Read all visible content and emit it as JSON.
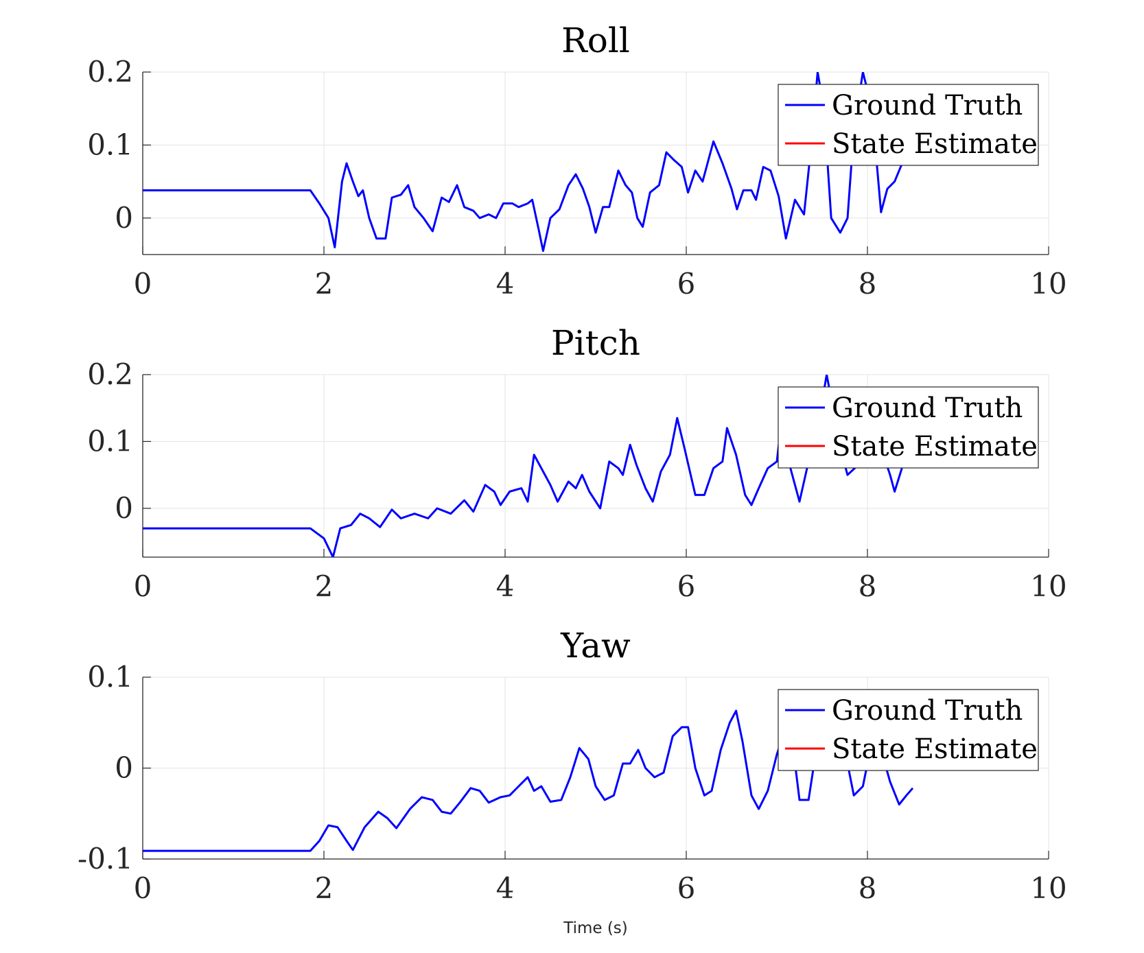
{
  "xlabel": "Time (s)",
  "chart_data": [
    {
      "type": "line",
      "title": "Roll",
      "xlim": [
        0,
        10
      ],
      "ylim": [
        -0.05,
        0.2
      ],
      "xticks": [
        "0",
        "2",
        "4",
        "6",
        "8",
        "10"
      ],
      "yticks": [
        "0.2",
        "0.1",
        "0"
      ],
      "grid": true,
      "legend_position": "top-right",
      "series": [
        {
          "name": "Ground Truth",
          "color": "#0000ff",
          "points": [
            [
              0,
              0.038
            ],
            [
              1.85,
              0.038
            ],
            [
              1.95,
              0.02
            ],
            [
              2.05,
              0.0
            ],
            [
              2.12,
              -0.04
            ],
            [
              2.2,
              0.05
            ],
            [
              2.25,
              0.075
            ],
            [
              2.32,
              0.05
            ],
            [
              2.38,
              0.03
            ],
            [
              2.43,
              0.038
            ],
            [
              2.5,
              0.0
            ],
            [
              2.58,
              -0.028
            ],
            [
              2.68,
              -0.028
            ],
            [
              2.75,
              0.028
            ],
            [
              2.85,
              0.032
            ],
            [
              2.93,
              0.045
            ],
            [
              3.0,
              0.015
            ],
            [
              3.1,
              0.0
            ],
            [
              3.2,
              -0.018
            ],
            [
              3.3,
              0.028
            ],
            [
              3.38,
              0.022
            ],
            [
              3.47,
              0.045
            ],
            [
              3.55,
              0.015
            ],
            [
              3.65,
              0.01
            ],
            [
              3.72,
              0.0
            ],
            [
              3.82,
              0.005
            ],
            [
              3.9,
              0.0
            ],
            [
              3.98,
              0.02
            ],
            [
              4.08,
              0.02
            ],
            [
              4.15,
              0.015
            ],
            [
              4.25,
              0.02
            ],
            [
              4.3,
              0.025
            ],
            [
              4.37,
              -0.015
            ],
            [
              4.42,
              -0.045
            ],
            [
              4.5,
              0.0
            ],
            [
              4.6,
              0.012
            ],
            [
              4.7,
              0.045
            ],
            [
              4.78,
              0.06
            ],
            [
              4.86,
              0.04
            ],
            [
              4.93,
              0.015
            ],
            [
              5.0,
              -0.02
            ],
            [
              5.08,
              0.015
            ],
            [
              5.15,
              0.015
            ],
            [
              5.25,
              0.065
            ],
            [
              5.33,
              0.045
            ],
            [
              5.4,
              0.035
            ],
            [
              5.46,
              0.0
            ],
            [
              5.52,
              -0.012
            ],
            [
              5.6,
              0.035
            ],
            [
              5.7,
              0.045
            ],
            [
              5.78,
              0.09
            ],
            [
              5.86,
              0.08
            ],
            [
              5.95,
              0.07
            ],
            [
              6.02,
              0.035
            ],
            [
              6.1,
              0.065
            ],
            [
              6.18,
              0.05
            ],
            [
              6.3,
              0.105
            ],
            [
              6.4,
              0.075
            ],
            [
              6.5,
              0.04
            ],
            [
              6.56,
              0.012
            ],
            [
              6.63,
              0.038
            ],
            [
              6.72,
              0.038
            ],
            [
              6.77,
              0.025
            ],
            [
              6.85,
              0.07
            ],
            [
              6.93,
              0.065
            ],
            [
              7.02,
              0.03
            ],
            [
              7.1,
              -0.028
            ],
            [
              7.2,
              0.025
            ],
            [
              7.3,
              0.005
            ],
            [
              7.38,
              0.1
            ],
            [
              7.45,
              0.2
            ],
            [
              7.52,
              0.15
            ],
            [
              7.6,
              0.0
            ],
            [
              7.7,
              -0.02
            ],
            [
              7.78,
              0.0
            ],
            [
              7.85,
              0.12
            ],
            [
              7.95,
              0.2
            ],
            [
              8.05,
              0.15
            ],
            [
              8.15,
              0.008
            ],
            [
              8.22,
              0.04
            ],
            [
              8.3,
              0.05
            ],
            [
              8.4,
              0.08
            ]
          ]
        },
        {
          "name": "State Estimate",
          "color": "#ff0000",
          "points": []
        }
      ]
    },
    {
      "type": "line",
      "title": "Pitch",
      "xlim": [
        0,
        10
      ],
      "ylim": [
        -0.073,
        0.2
      ],
      "xticks": [
        "0",
        "2",
        "4",
        "6",
        "8",
        "10"
      ],
      "yticks": [
        "0.2",
        "0.1",
        "0"
      ],
      "grid": true,
      "legend_position": "top-right",
      "series": [
        {
          "name": "Ground Truth",
          "color": "#0000ff",
          "points": [
            [
              0,
              -0.03
            ],
            [
              1.85,
              -0.03
            ],
            [
              2.0,
              -0.045
            ],
            [
              2.1,
              -0.073
            ],
            [
              2.18,
              -0.03
            ],
            [
              2.3,
              -0.025
            ],
            [
              2.4,
              -0.008
            ],
            [
              2.5,
              -0.015
            ],
            [
              2.62,
              -0.028
            ],
            [
              2.75,
              -0.002
            ],
            [
              2.85,
              -0.015
            ],
            [
              3.0,
              -0.008
            ],
            [
              3.15,
              -0.015
            ],
            [
              3.25,
              0.0
            ],
            [
              3.4,
              -0.008
            ],
            [
              3.55,
              0.012
            ],
            [
              3.65,
              -0.005
            ],
            [
              3.78,
              0.035
            ],
            [
              3.88,
              0.025
            ],
            [
              3.95,
              0.005
            ],
            [
              4.05,
              0.025
            ],
            [
              4.18,
              0.03
            ],
            [
              4.25,
              0.01
            ],
            [
              4.32,
              0.08
            ],
            [
              4.4,
              0.06
            ],
            [
              4.5,
              0.035
            ],
            [
              4.58,
              0.01
            ],
            [
              4.7,
              0.04
            ],
            [
              4.78,
              0.03
            ],
            [
              4.85,
              0.05
            ],
            [
              4.93,
              0.025
            ],
            [
              5.05,
              0.0
            ],
            [
              5.15,
              0.07
            ],
            [
              5.25,
              0.06
            ],
            [
              5.3,
              0.05
            ],
            [
              5.38,
              0.095
            ],
            [
              5.45,
              0.065
            ],
            [
              5.55,
              0.03
            ],
            [
              5.63,
              0.01
            ],
            [
              5.72,
              0.055
            ],
            [
              5.82,
              0.08
            ],
            [
              5.9,
              0.135
            ],
            [
              5.98,
              0.09
            ],
            [
              6.1,
              0.02
            ],
            [
              6.2,
              0.02
            ],
            [
              6.3,
              0.06
            ],
            [
              6.4,
              0.07
            ],
            [
              6.45,
              0.12
            ],
            [
              6.55,
              0.08
            ],
            [
              6.65,
              0.02
            ],
            [
              6.72,
              0.005
            ],
            [
              6.8,
              0.03
            ],
            [
              6.9,
              0.06
            ],
            [
              7.0,
              0.07
            ],
            [
              7.05,
              0.13
            ],
            [
              7.15,
              0.06
            ],
            [
              7.25,
              0.01
            ],
            [
              7.35,
              0.07
            ],
            [
              7.45,
              0.12
            ],
            [
              7.55,
              0.2
            ],
            [
              7.62,
              0.15
            ],
            [
              7.7,
              0.09
            ],
            [
              7.78,
              0.05
            ],
            [
              7.86,
              0.06
            ],
            [
              7.95,
              0.12
            ],
            [
              8.05,
              0.15
            ],
            [
              8.15,
              0.09
            ],
            [
              8.25,
              0.05
            ],
            [
              8.3,
              0.025
            ],
            [
              8.38,
              0.06
            ]
          ]
        },
        {
          "name": "State Estimate",
          "color": "#ff0000",
          "points": []
        }
      ]
    },
    {
      "type": "line",
      "title": "Yaw",
      "xlim": [
        0,
        10
      ],
      "ylim": [
        -0.1,
        0.1
      ],
      "xticks": [
        "0",
        "2",
        "4",
        "6",
        "8",
        "10"
      ],
      "yticks": [
        "0.1",
        "0",
        "-0.1"
      ],
      "grid": true,
      "legend_position": "top-right",
      "series": [
        {
          "name": "Ground Truth",
          "color": "#0000ff",
          "points": [
            [
              0,
              -0.091
            ],
            [
              1.85,
              -0.091
            ],
            [
              1.95,
              -0.08
            ],
            [
              2.05,
              -0.063
            ],
            [
              2.15,
              -0.065
            ],
            [
              2.25,
              -0.08
            ],
            [
              2.32,
              -0.09
            ],
            [
              2.45,
              -0.065
            ],
            [
              2.6,
              -0.048
            ],
            [
              2.7,
              -0.055
            ],
            [
              2.8,
              -0.066
            ],
            [
              2.95,
              -0.045
            ],
            [
              3.08,
              -0.032
            ],
            [
              3.2,
              -0.035
            ],
            [
              3.3,
              -0.048
            ],
            [
              3.4,
              -0.05
            ],
            [
              3.5,
              -0.038
            ],
            [
              3.62,
              -0.022
            ],
            [
              3.72,
              -0.025
            ],
            [
              3.82,
              -0.038
            ],
            [
              3.95,
              -0.032
            ],
            [
              4.05,
              -0.03
            ],
            [
              4.15,
              -0.02
            ],
            [
              4.25,
              -0.01
            ],
            [
              4.32,
              -0.025
            ],
            [
              4.4,
              -0.02
            ],
            [
              4.5,
              -0.037
            ],
            [
              4.62,
              -0.035
            ],
            [
              4.72,
              -0.01
            ],
            [
              4.82,
              0.022
            ],
            [
              4.92,
              0.01
            ],
            [
              5.0,
              -0.02
            ],
            [
              5.1,
              -0.035
            ],
            [
              5.2,
              -0.03
            ],
            [
              5.3,
              0.005
            ],
            [
              5.38,
              0.005
            ],
            [
              5.47,
              0.02
            ],
            [
              5.55,
              0.0
            ],
            [
              5.65,
              -0.01
            ],
            [
              5.75,
              -0.005
            ],
            [
              5.85,
              0.035
            ],
            [
              5.95,
              0.045
            ],
            [
              6.02,
              0.045
            ],
            [
              6.1,
              0.0
            ],
            [
              6.2,
              -0.03
            ],
            [
              6.28,
              -0.025
            ],
            [
              6.38,
              0.02
            ],
            [
              6.48,
              0.05
            ],
            [
              6.55,
              0.063
            ],
            [
              6.62,
              0.03
            ],
            [
              6.72,
              -0.03
            ],
            [
              6.8,
              -0.045
            ],
            [
              6.9,
              -0.025
            ],
            [
              7.0,
              0.015
            ],
            [
              7.05,
              0.03
            ],
            [
              7.1,
              0.05
            ],
            [
              7.17,
              0.03
            ],
            [
              7.25,
              -0.035
            ],
            [
              7.35,
              -0.035
            ],
            [
              7.45,
              0.03
            ],
            [
              7.55,
              0.08
            ],
            [
              7.65,
              0.08
            ],
            [
              7.75,
              0.02
            ],
            [
              7.85,
              -0.03
            ],
            [
              7.95,
              -0.02
            ],
            [
              8.05,
              0.03
            ],
            [
              8.15,
              0.02
            ],
            [
              8.25,
              -0.015
            ],
            [
              8.35,
              -0.04
            ],
            [
              8.43,
              -0.03
            ],
            [
              8.5,
              -0.022
            ]
          ]
        },
        {
          "name": "State Estimate",
          "color": "#ff0000",
          "points": []
        }
      ]
    }
  ]
}
